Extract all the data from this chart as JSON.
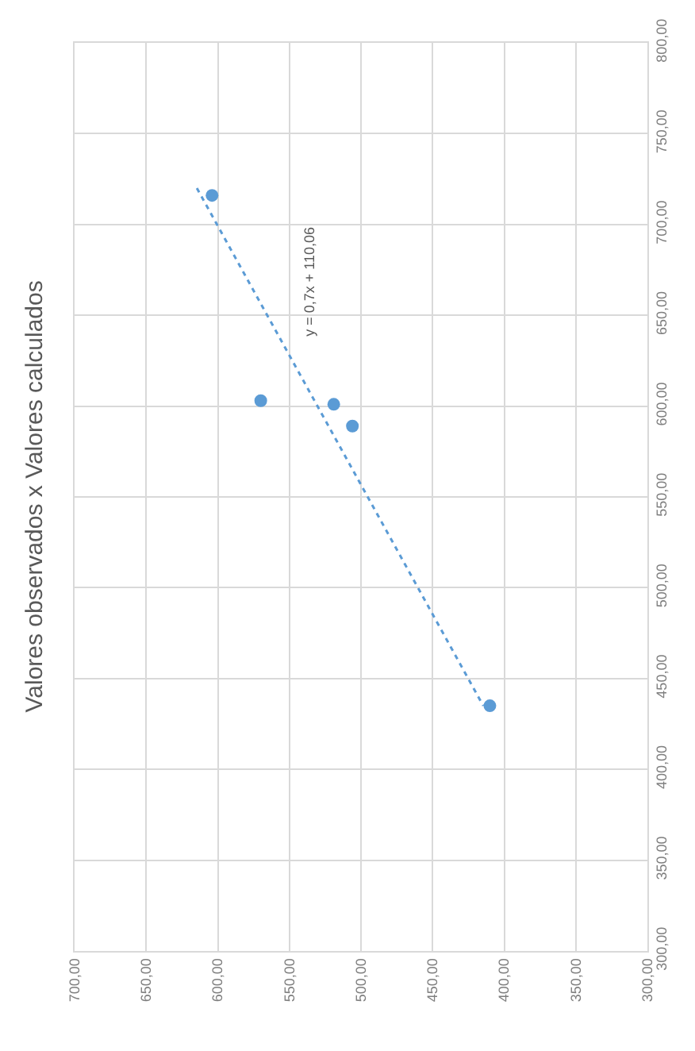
{
  "chart_data": {
    "type": "scatter",
    "title": "Valores observados x Valores calculados",
    "x": [
      604,
      570,
      519,
      506,
      410
    ],
    "series": [
      {
        "color": "#5b9bd5",
        "values": [
          716,
          603,
          601,
          589,
          435
        ],
        "marker": "circle"
      },
      {
        "type": "line",
        "color": "#5b9bd5",
        "x": [
          614.6,
          414.6
        ],
        "values": [
          720,
          435
        ],
        "line_style": "dotted",
        "marker": "none"
      }
    ],
    "xlim": [
      700,
      300
    ],
    "xticks": [
      {
        "value": 700,
        "label": "700,00"
      },
      {
        "value": 650,
        "label": "650,00"
      },
      {
        "value": 600,
        "label": "600,00"
      },
      {
        "value": 550,
        "label": "550,00"
      },
      {
        "value": 500,
        "label": "500,00"
      },
      {
        "value": 450,
        "label": "450,00"
      },
      {
        "value": 400,
        "label": "400,00"
      },
      {
        "value": 350,
        "label": "350,00"
      },
      {
        "value": 300,
        "label": "300,00"
      }
    ],
    "ylim": [
      300,
      800
    ],
    "yticks": [
      {
        "value": 300,
        "label": "300,00"
      },
      {
        "value": 350,
        "label": "350,00"
      },
      {
        "value": 400,
        "label": "400,00"
      },
      {
        "value": 450,
        "label": "450,00"
      },
      {
        "value": 500,
        "label": "500,00"
      },
      {
        "value": 550,
        "label": "550,00"
      },
      {
        "value": 600,
        "label": "600,00"
      },
      {
        "value": 650,
        "label": "650,00"
      },
      {
        "value": 700,
        "label": "700,00"
      },
      {
        "value": 750,
        "label": "750,00"
      },
      {
        "value": 800,
        "label": "800,00"
      }
    ],
    "annotations": [
      "y = 0,7x + 110,06"
    ],
    "grid": true,
    "legend": false
  }
}
